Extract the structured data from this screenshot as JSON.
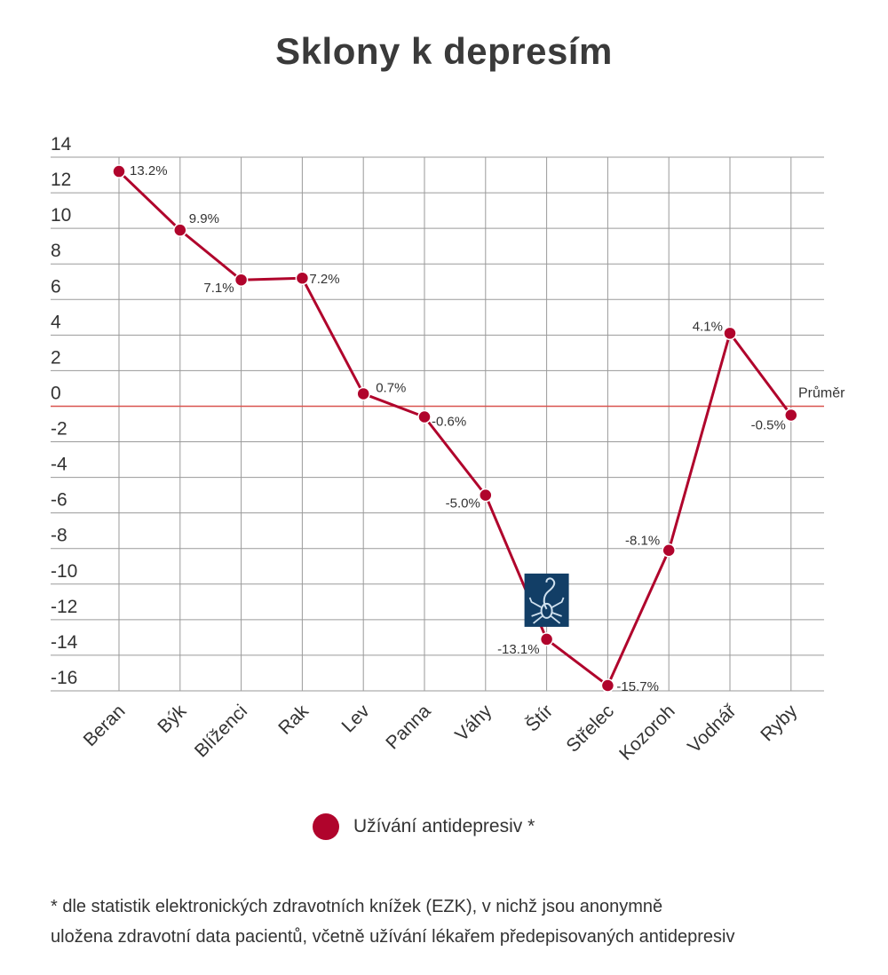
{
  "title": "Sklony k depresím",
  "chart_data": {
    "type": "line",
    "categories": [
      "Beran",
      "Býk",
      "Blíženci",
      "Rak",
      "Lev",
      "Panna",
      "Váhy",
      "Štír",
      "Střelec",
      "Kozoroh",
      "Vodnář",
      "Ryby"
    ],
    "series": [
      {
        "name": "Užívání antidepresiv *",
        "values": [
          13.2,
          9.9,
          7.1,
          7.2,
          0.7,
          -0.6,
          -5.0,
          -13.1,
          -15.7,
          -8.1,
          4.1,
          -0.5
        ],
        "labels": [
          "13.2%",
          "9.9%",
          "7.1%",
          "7.2%",
          "0.7%",
          "-0.6%",
          "-5.0%",
          "-13.1%",
          "-15.7%",
          "-8.1%",
          "4.1%",
          "-0.5%"
        ],
        "color": "#b0042c"
      }
    ],
    "yticks": [
      14,
      12,
      10,
      8,
      6,
      4,
      2,
      0,
      -2,
      -4,
      -6,
      -8,
      -10,
      -12,
      -14,
      -16
    ],
    "ylim": [
      -16,
      14
    ],
    "grid": true,
    "reference_line": {
      "value": 0,
      "label": "Průměr",
      "color": "#d9534f"
    },
    "legend_position": "bottom-center"
  },
  "legend": {
    "label": "Užívání antidepresiv *"
  },
  "footnote": {
    "line1": "* dle statistik elektronických zdravotních knížek (EZK), v nichž jsou anonymně",
    "line2": "uložena zdravotní data pacientů, včetně užívání lékařem předepisovaných antidepresiv"
  },
  "icons": {
    "highlight": "scorpion-icon"
  }
}
